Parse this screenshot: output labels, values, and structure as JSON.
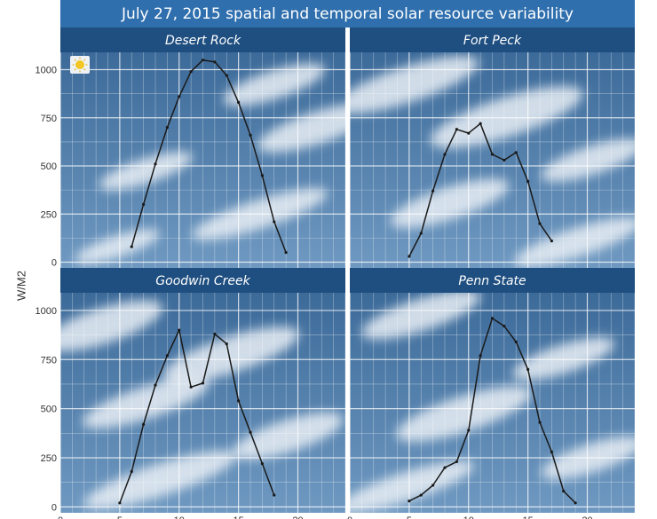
{
  "title": "July 27, 2015 spatial and temporal solar resource variability",
  "ylabel": "W/M2",
  "colors": {
    "title_bg": "#2f6fae",
    "strip_bg": "#1f4f80",
    "strip_text": "#ffffff",
    "sky_top": "#3c6a99",
    "sky_bottom": "#6f99c1",
    "cloud": "#e9eef4",
    "grid": "#ffffff",
    "line": "#1a1a1a"
  },
  "icons": {
    "logo": "sun-logo-icon"
  },
  "chart_data": [
    {
      "type": "line",
      "title": "Desert Rock",
      "x": [
        6,
        7,
        8,
        9,
        10,
        11,
        12,
        13,
        14,
        15,
        16,
        17,
        18,
        19
      ],
      "y": [
        80,
        300,
        510,
        700,
        860,
        990,
        1050,
        1040,
        970,
        830,
        660,
        450,
        210,
        50
      ],
      "xlim": [
        0,
        24
      ],
      "ylim": [
        -30,
        1090
      ],
      "yticks": [
        0,
        250,
        500,
        750,
        1000
      ],
      "xticks": [
        0,
        5,
        10,
        15,
        20
      ],
      "grid": true
    },
    {
      "type": "line",
      "title": "Fort Peck",
      "x": [
        5,
        6,
        7,
        8,
        9,
        10,
        11,
        12,
        13,
        14,
        15,
        16,
        17
      ],
      "y": [
        30,
        150,
        370,
        560,
        690,
        670,
        720,
        560,
        530,
        570,
        420,
        200,
        110
      ],
      "xlim": [
        0,
        24
      ],
      "ylim": [
        -30,
        1090
      ],
      "yticks": [
        0,
        250,
        500,
        750,
        1000
      ],
      "xticks": [
        0,
        5,
        10,
        15,
        20
      ],
      "grid": true
    },
    {
      "type": "line",
      "title": "Goodwin Creek",
      "x": [
        5,
        6,
        7,
        8,
        9,
        10,
        11,
        12,
        13,
        14,
        15,
        16,
        17,
        18
      ],
      "y": [
        20,
        180,
        420,
        620,
        770,
        900,
        610,
        630,
        880,
        830,
        540,
        380,
        220,
        60
      ],
      "xlim": [
        0,
        24
      ],
      "ylim": [
        -30,
        1090
      ],
      "yticks": [
        0,
        250,
        500,
        750,
        1000
      ],
      "xticks": [
        0,
        5,
        10,
        15,
        20
      ],
      "grid": true
    },
    {
      "type": "line",
      "title": "Penn State",
      "x": [
        5,
        6,
        7,
        8,
        9,
        10,
        11,
        12,
        13,
        14,
        15,
        16,
        17,
        18,
        19
      ],
      "y": [
        30,
        60,
        110,
        200,
        230,
        390,
        770,
        960,
        920,
        840,
        700,
        430,
        280,
        80,
        20
      ],
      "xlim": [
        0,
        24
      ],
      "ylim": [
        -30,
        1090
      ],
      "yticks": [
        0,
        250,
        500,
        750,
        1000
      ],
      "xticks": [
        0,
        5,
        10,
        15,
        20
      ],
      "grid": true
    }
  ]
}
